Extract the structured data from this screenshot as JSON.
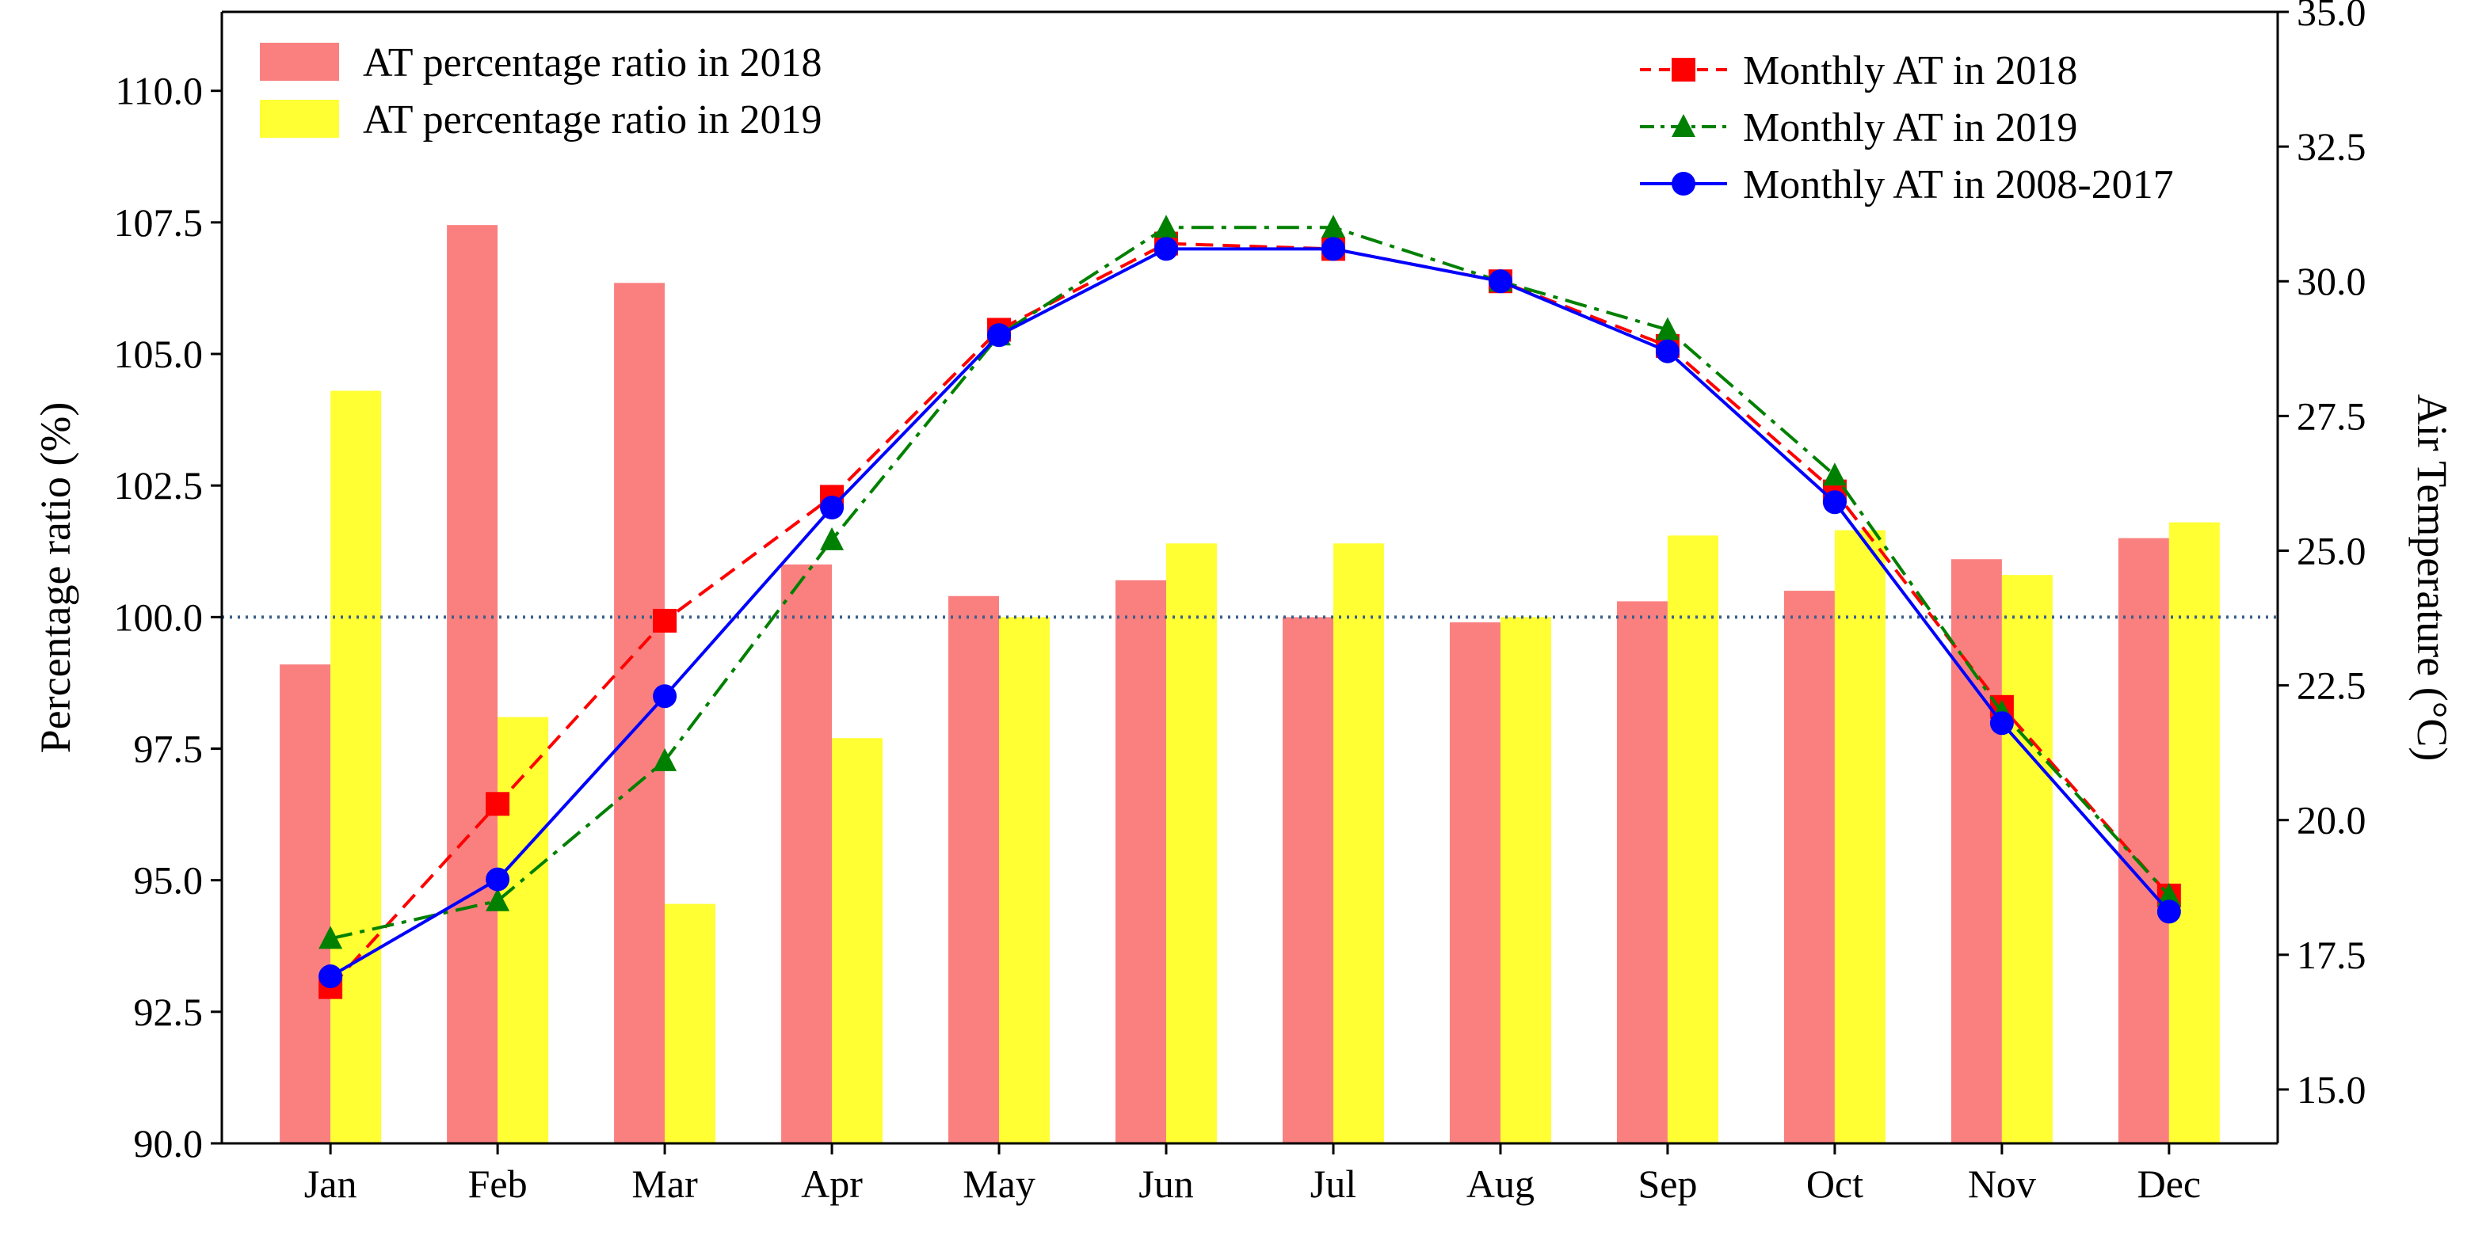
{
  "chart_data": {
    "type": "bar",
    "categories": [
      "Jan",
      "Feb",
      "Mar",
      "Apr",
      "May",
      "Jun",
      "Jul",
      "Aug",
      "Sep",
      "Oct",
      "Nov",
      "Dec"
    ],
    "ylabel_left": "Percentage ratio (%)",
    "ylabel_right": "Air Temperature (°C)",
    "ylim_left": [
      90.0,
      111.5
    ],
    "ylim_right": [
      14.0,
      35.0
    ],
    "yticks_left": [
      "90.0",
      "92.5",
      "95.0",
      "97.5",
      "100.0",
      "102.5",
      "105.0",
      "107.5",
      "110.0"
    ],
    "yticks_right": [
      "15.0",
      "17.5",
      "20.0",
      "22.5",
      "25.0",
      "27.5",
      "30.0",
      "32.5",
      "35.0"
    ],
    "reference_line": {
      "y": 100.0,
      "style": "dotted",
      "color": "#3b5f8a"
    },
    "bar_series": [
      {
        "name": "AT percentage ratio in 2018",
        "color": "#fa8080",
        "values": [
          99.1,
          107.45,
          106.35,
          101.0,
          100.4,
          100.7,
          100.0,
          99.9,
          100.3,
          100.5,
          101.1,
          101.5
        ]
      },
      {
        "name": "AT percentage ratio in 2019",
        "color": "#ffff33",
        "values": [
          104.3,
          98.1,
          94.55,
          97.7,
          100.0,
          101.4,
          101.4,
          100.0,
          101.55,
          101.65,
          100.8,
          101.8
        ]
      }
    ],
    "line_series": [
      {
        "name": "Monthly AT in 2018",
        "color": "#ff0000",
        "marker": "square",
        "dash": "dashed",
        "values": [
          16.9,
          20.3,
          23.7,
          26.0,
          29.1,
          30.7,
          30.6,
          30.0,
          28.8,
          26.1,
          22.1,
          18.6
        ]
      },
      {
        "name": "Monthly AT in 2019",
        "color": "#008000",
        "marker": "triangle",
        "dash": "dashdot",
        "values": [
          17.8,
          18.5,
          21.1,
          25.2,
          29.0,
          31.0,
          31.0,
          30.0,
          29.1,
          26.4,
          22.0,
          18.6
        ]
      },
      {
        "name": "Monthly AT in 2008-2017",
        "color": "#0000ff",
        "marker": "circle",
        "dash": "solid",
        "values": [
          17.1,
          18.9,
          22.3,
          25.8,
          29.0,
          30.6,
          30.6,
          30.0,
          28.7,
          25.9,
          21.8,
          18.3
        ]
      }
    ],
    "legend_left_position": "top-left",
    "legend_right_position": "top-right",
    "grid": false
  }
}
